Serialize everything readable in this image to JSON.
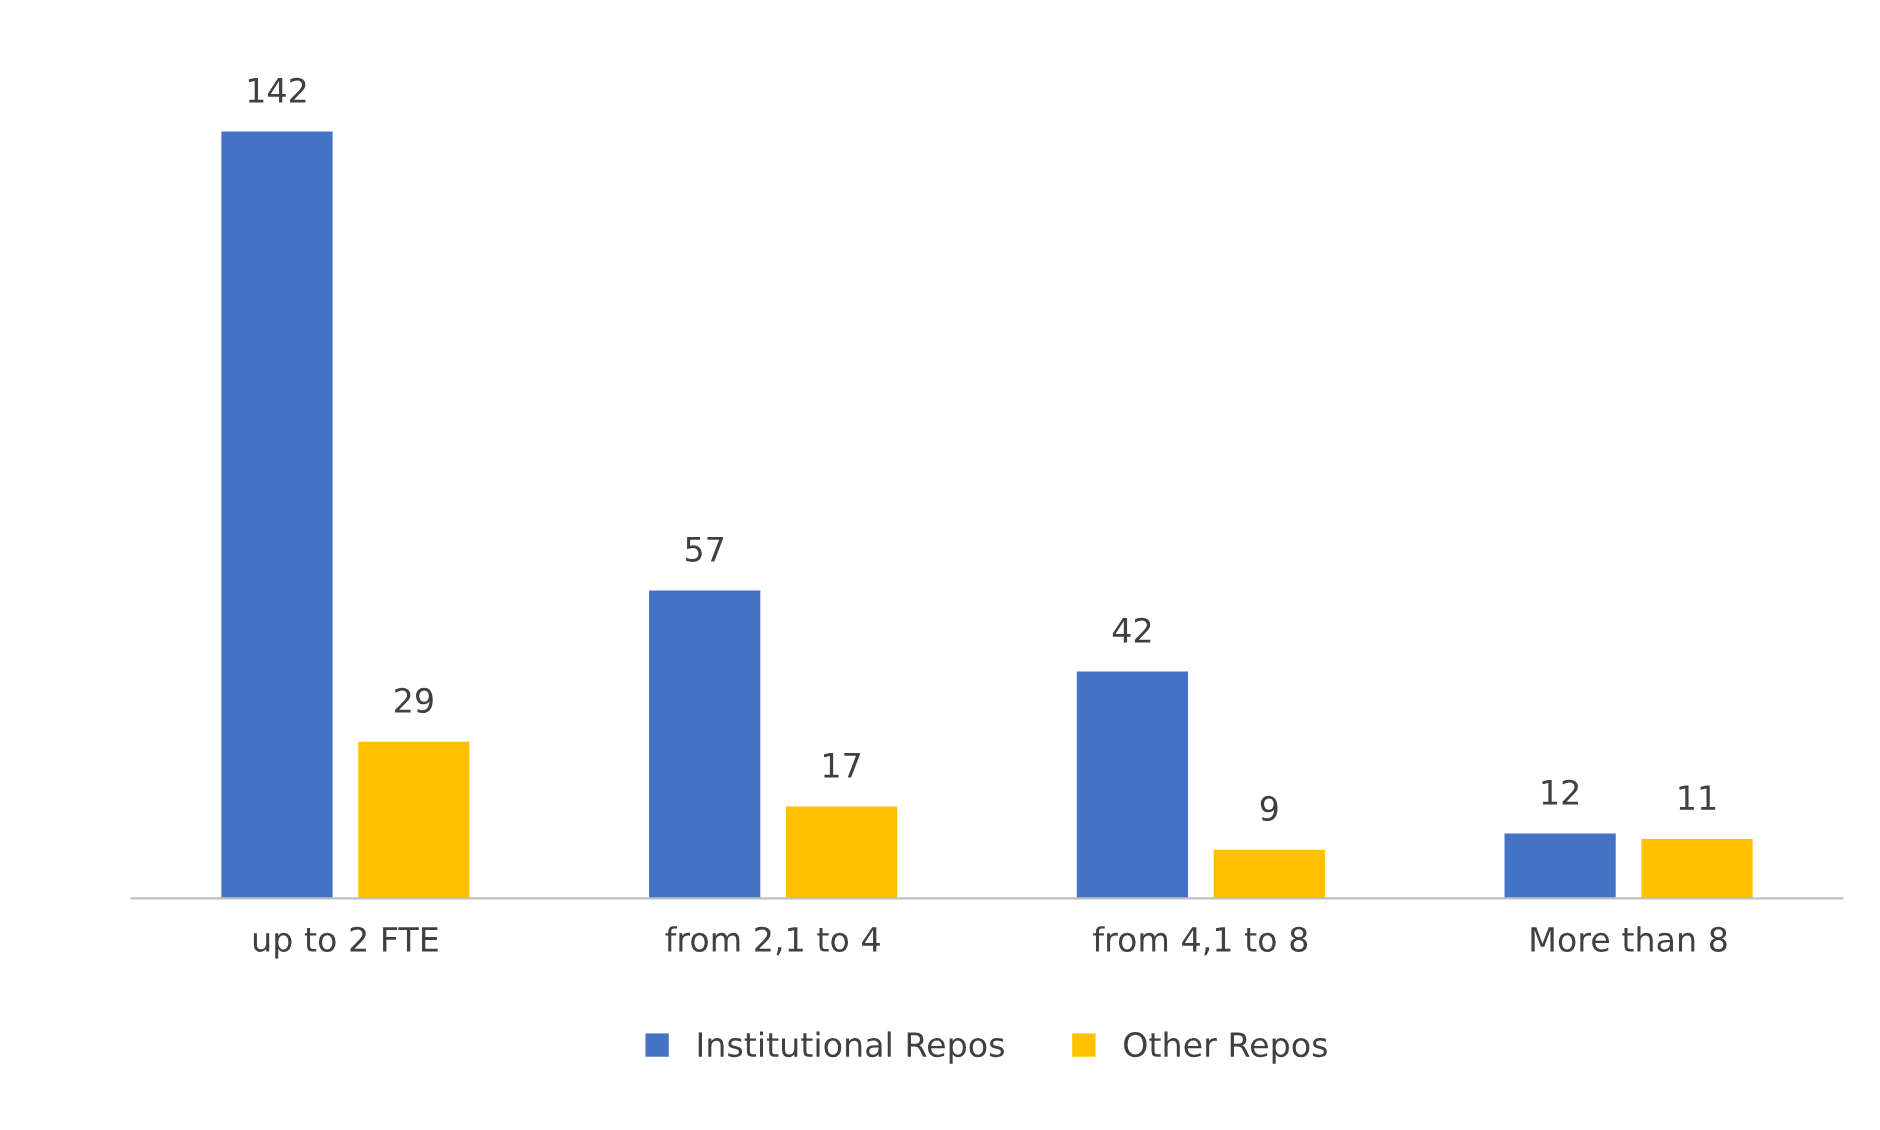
{
  "chart_data": {
    "type": "bar",
    "categories": [
      "up to 2 FTE",
      "from 2,1 to 4",
      "from 4,1 to 8",
      "More than 8"
    ],
    "series": [
      {
        "name": "Institutional Repos",
        "color": "#4472c4",
        "values": [
          142,
          57,
          42,
          12
        ]
      },
      {
        "name": "Other Repos",
        "color": "#ffc000",
        "values": [
          29,
          17,
          9,
          11
        ]
      }
    ],
    "data_labels": true,
    "legend": "bottom",
    "grid": false
  }
}
